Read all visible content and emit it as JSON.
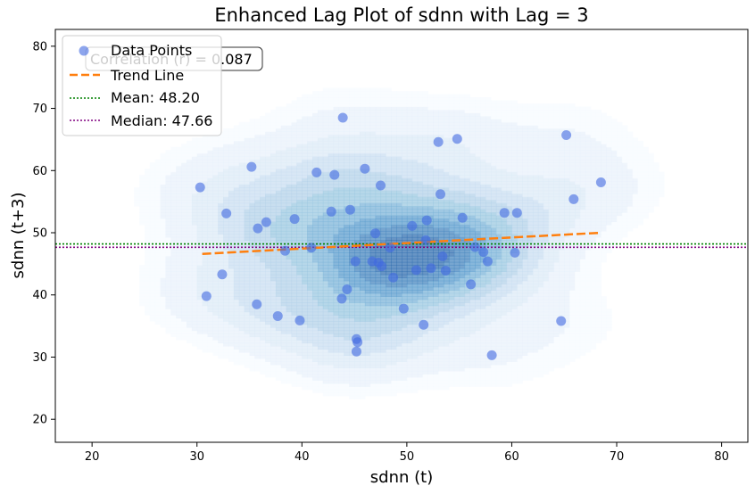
{
  "chart_data": {
    "type": "scatter",
    "title": "Enhanced Lag Plot of sdnn with Lag = 3",
    "xlabel": "sdnn (t)",
    "ylabel": "sdnn (t+3)",
    "xlim": [
      16.5,
      82.5
    ],
    "ylim": [
      16.3,
      82.7
    ],
    "xticks": [
      20,
      30,
      40,
      50,
      60,
      70,
      80
    ],
    "yticks": [
      20,
      30,
      40,
      50,
      60,
      70,
      80
    ],
    "annotation": "Correlation (r) = 0.087",
    "legend": {
      "position": "top-left",
      "entries": [
        {
          "label": "Data Points",
          "kind": "marker"
        },
        {
          "label": "Trend Line",
          "kind": "dashed"
        },
        {
          "label": "Mean: 48.20",
          "kind": "dotted-mean"
        },
        {
          "label": "Median: 47.66",
          "kind": "dotted-median"
        }
      ]
    },
    "mean": 48.2,
    "median": 47.66,
    "trend": {
      "x": [
        30.5,
        68.5
      ],
      "y": [
        46.6,
        50.0
      ]
    },
    "colors": {
      "points": "#4169e1",
      "trend": "#ff7f0e",
      "mean": "#008000",
      "median": "#800080",
      "density": "#1f5aa6"
    },
    "points": [
      [
        30.3,
        57.3
      ],
      [
        30.9,
        39.8
      ],
      [
        32.4,
        43.3
      ],
      [
        32.8,
        53.1
      ],
      [
        35.2,
        60.6
      ],
      [
        35.7,
        38.5
      ],
      [
        35.8,
        50.7
      ],
      [
        36.6,
        51.7
      ],
      [
        37.7,
        36.6
      ],
      [
        38.4,
        47.1
      ],
      [
        39.3,
        52.2
      ],
      [
        39.8,
        35.9
      ],
      [
        40.9,
        47.6
      ],
      [
        41.4,
        59.7
      ],
      [
        42.8,
        53.4
      ],
      [
        43.1,
        59.3
      ],
      [
        43.8,
        39.4
      ],
      [
        43.9,
        68.5
      ],
      [
        44.3,
        40.9
      ],
      [
        44.6,
        53.7
      ],
      [
        45.1,
        45.4
      ],
      [
        45.2,
        32.9
      ],
      [
        45.2,
        30.9
      ],
      [
        45.3,
        32.4
      ],
      [
        46.0,
        60.3
      ],
      [
        46.7,
        45.4
      ],
      [
        47.0,
        49.9
      ],
      [
        47.3,
        45.2
      ],
      [
        47.5,
        57.6
      ],
      [
        47.6,
        44.6
      ],
      [
        48.4,
        47.6
      ],
      [
        48.7,
        42.8
      ],
      [
        49.7,
        37.8
      ],
      [
        50.5,
        51.1
      ],
      [
        50.9,
        44.0
      ],
      [
        51.6,
        35.2
      ],
      [
        51.8,
        48.8
      ],
      [
        51.9,
        52.0
      ],
      [
        52.3,
        44.3
      ],
      [
        53.0,
        64.6
      ],
      [
        53.2,
        56.2
      ],
      [
        53.4,
        46.2
      ],
      [
        53.7,
        43.9
      ],
      [
        54.8,
        65.1
      ],
      [
        55.3,
        52.4
      ],
      [
        56.1,
        41.7
      ],
      [
        56.5,
        47.7
      ],
      [
        57.3,
        46.9
      ],
      [
        57.7,
        45.4
      ],
      [
        58.1,
        30.3
      ],
      [
        59.3,
        53.2
      ],
      [
        60.3,
        46.8
      ],
      [
        60.5,
        53.2
      ],
      [
        64.7,
        35.8
      ],
      [
        65.2,
        65.7
      ],
      [
        65.9,
        55.4
      ],
      [
        68.5,
        58.1
      ]
    ]
  }
}
